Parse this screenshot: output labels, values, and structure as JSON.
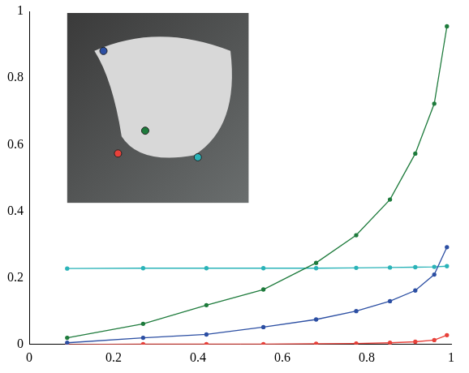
{
  "chart_data": {
    "type": "line",
    "x": [
      0.09,
      0.27,
      0.42,
      0.555,
      0.68,
      0.775,
      0.855,
      0.915,
      0.96,
      0.99
    ],
    "series": [
      {
        "color": "#1e7b3c",
        "marker": "circle",
        "values": [
          0.02,
          0.062,
          0.118,
          0.165,
          0.245,
          0.328,
          0.435,
          0.573,
          0.723,
          0.955
        ]
      },
      {
        "color": "#2c4fa3",
        "marker": "circle",
        "values": [
          0.005,
          0.02,
          0.03,
          0.052,
          0.075,
          0.1,
          0.13,
          0.162,
          0.21,
          0.292
        ]
      },
      {
        "color": "#e8413a",
        "marker": "circle",
        "values": [
          0.0,
          0.001,
          0.001,
          0.001,
          0.002,
          0.003,
          0.005,
          0.008,
          0.013,
          0.028
        ]
      },
      {
        "color": "#2ab3b8",
        "marker": "circle",
        "values": [
          0.228,
          0.229,
          0.229,
          0.229,
          0.229,
          0.23,
          0.231,
          0.232,
          0.233,
          0.235
        ]
      }
    ],
    "xlim": [
      0,
      1
    ],
    "xticks": [
      0,
      0.2,
      0.4,
      0.6,
      0.8,
      1
    ],
    "ylim": [
      0,
      1
    ],
    "yticks": [
      0,
      0.2,
      0.4,
      0.6,
      0.8,
      1
    ],
    "grid": false
  }
}
